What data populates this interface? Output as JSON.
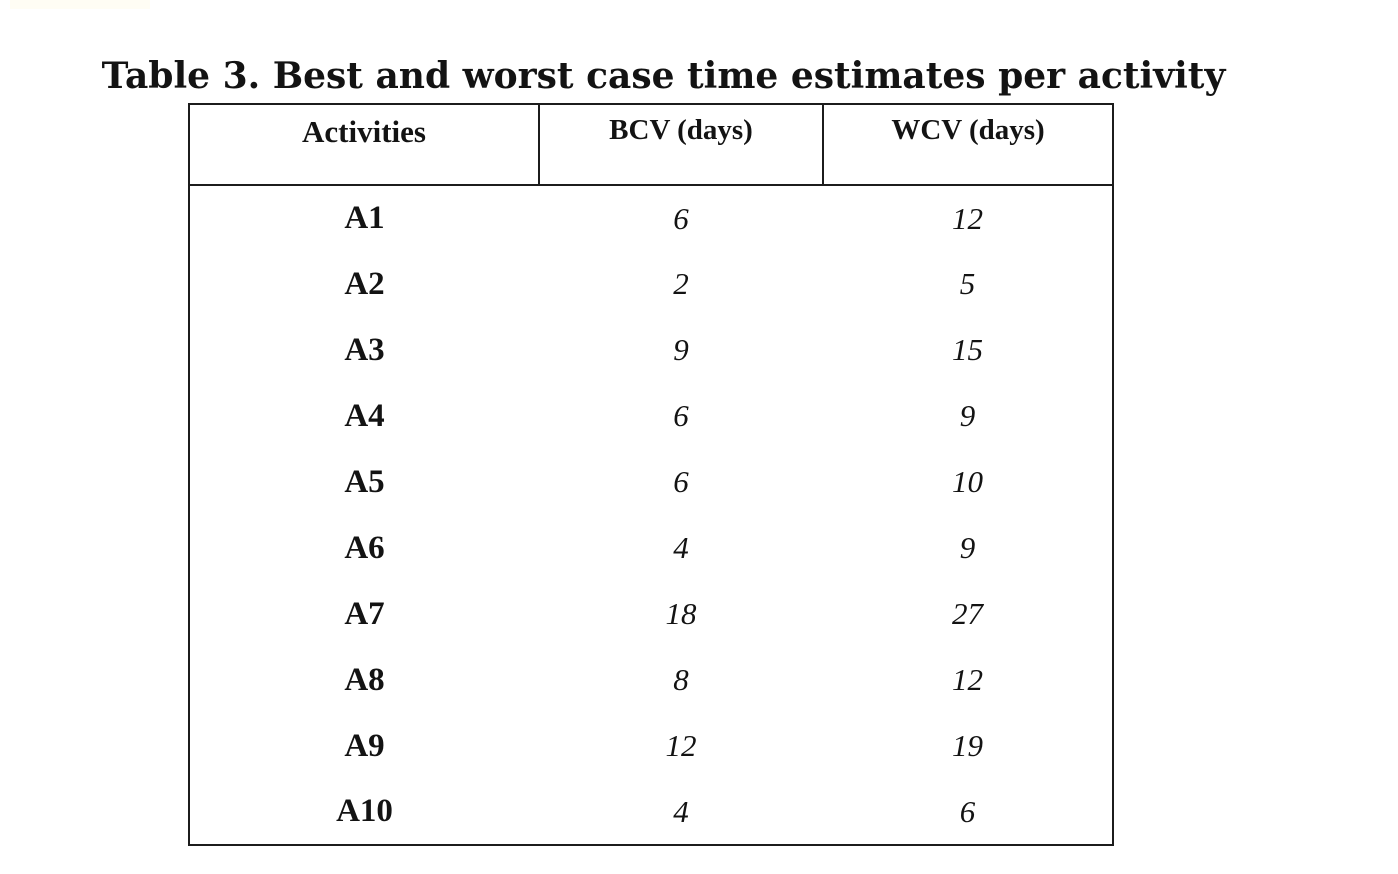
{
  "page": {
    "title": "Table 3. Best and worst case time estimates per activity"
  },
  "table": {
    "columns": [
      {
        "label": "Activities"
      },
      {
        "label": "BCV (days)"
      },
      {
        "label": "WCV (days)"
      }
    ],
    "rows": [
      {
        "activity": "A1",
        "bcv": "6",
        "wcv": "12"
      },
      {
        "activity": "A2",
        "bcv": "2",
        "wcv": "5"
      },
      {
        "activity": "A3",
        "bcv": "9",
        "wcv": "15"
      },
      {
        "activity": "A4",
        "bcv": "6",
        "wcv": "9"
      },
      {
        "activity": "A5",
        "bcv": "6",
        "wcv": "10"
      },
      {
        "activity": "A6",
        "bcv": "4",
        "wcv": "9"
      },
      {
        "activity": "A7",
        "bcv": "18",
        "wcv": "27"
      },
      {
        "activity": "A8",
        "bcv": "8",
        "wcv": "12"
      },
      {
        "activity": "A9",
        "bcv": "12",
        "wcv": "19"
      },
      {
        "activity": "A10",
        "bcv": "4",
        "wcv": "6"
      }
    ],
    "style": {
      "border_color": "#1c1c1c",
      "text_color": "#131313",
      "background": "#ffffff",
      "artifact_strip_color": "#fffdf4"
    }
  }
}
